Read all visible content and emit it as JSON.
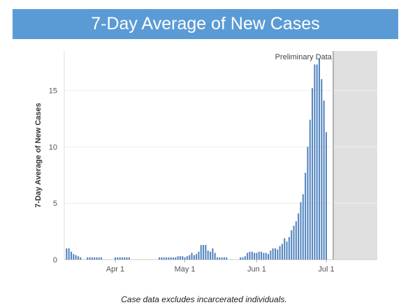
{
  "header": {
    "title": "7-Day Average of New Cases"
  },
  "footnote": "Case data excludes incarcerated individuals.",
  "colors": {
    "banner": "#5b9bd5",
    "bar": "#4e81bd",
    "shade": "#e0e0e0",
    "grid": "#eeeeee"
  },
  "chart_data": {
    "type": "bar",
    "title": "7-Day Average of New Cases",
    "xlabel": "",
    "ylabel": "7-Day Average of New Cases",
    "ylim": [
      0,
      18.5
    ],
    "yticks": [
      0,
      5,
      10,
      15
    ],
    "grid": true,
    "x_start": "2020-03-10",
    "x_end": "2020-07-23",
    "xticks": [
      {
        "date": "2020-04-01",
        "label": "Apr 1"
      },
      {
        "date": "2020-05-01",
        "label": "May 1"
      },
      {
        "date": "2020-06-01",
        "label": "Jun 1"
      },
      {
        "date": "2020-07-01",
        "label": "Jul 1"
      }
    ],
    "annotation": {
      "label": "Preliminary Data",
      "start": "2020-07-04",
      "end": "2020-07-23"
    },
    "series": [
      {
        "start_date": "2020-03-10",
        "values": [
          0,
          1,
          1,
          0.7,
          0.5,
          0.4,
          0.3,
          0.2,
          0,
          0,
          0.2,
          0.2,
          0.2,
          0.2,
          0.2,
          0.2,
          0.2,
          0,
          0,
          0,
          0,
          0,
          0.2,
          0.2,
          0.2,
          0.2,
          0.2,
          0.2,
          0.2,
          0,
          0,
          0,
          0,
          0,
          0,
          0,
          0,
          0,
          0,
          0,
          0,
          0.2,
          0.2,
          0.2,
          0.2,
          0.2,
          0.2,
          0.2,
          0.2,
          0.3,
          0.3,
          0.3,
          0.2,
          0.3,
          0.4,
          0.6,
          0.4,
          0.5,
          0.7,
          1.3,
          1.3,
          1.3,
          0.8,
          0.7,
          1,
          0.6,
          0.2,
          0.2,
          0.2,
          0.2,
          0.2,
          0,
          0,
          0,
          0,
          0,
          0.2,
          0.2,
          0.3,
          0.6,
          0.7,
          0.7,
          0.6,
          0.6,
          0.7,
          0.7,
          0.6,
          0.6,
          0.5,
          0.8,
          1,
          1,
          0.9,
          1.2,
          1.4,
          1.9,
          1.6,
          2,
          2.6,
          3,
          3.4,
          4.1,
          5.1,
          5.8,
          7.7,
          10,
          12.4,
          15.2,
          17.3,
          17.3,
          17.8,
          16,
          14.1,
          11.3
        ]
      }
    ]
  }
}
